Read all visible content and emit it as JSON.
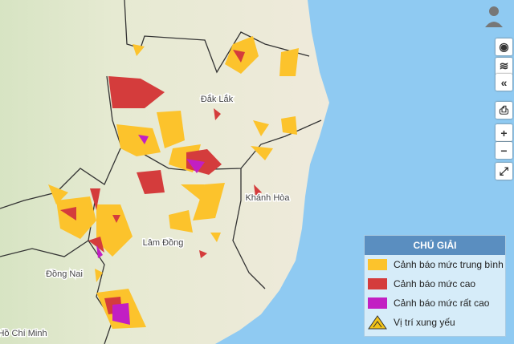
{
  "map": {
    "places": [
      "Đắk Lắk",
      "Khánh Hòa",
      "Lâm Đồng",
      "Đồng Nai",
      "Hồ Chí Minh"
    ],
    "legend": {
      "title": "CHÚ GIẢI",
      "items": [
        "Cảnh báo mức trung bình",
        "Cảnh báo mức cao",
        "Cảnh báo mức rất cao",
        "Vị trí xung yếu"
      ]
    }
  }
}
